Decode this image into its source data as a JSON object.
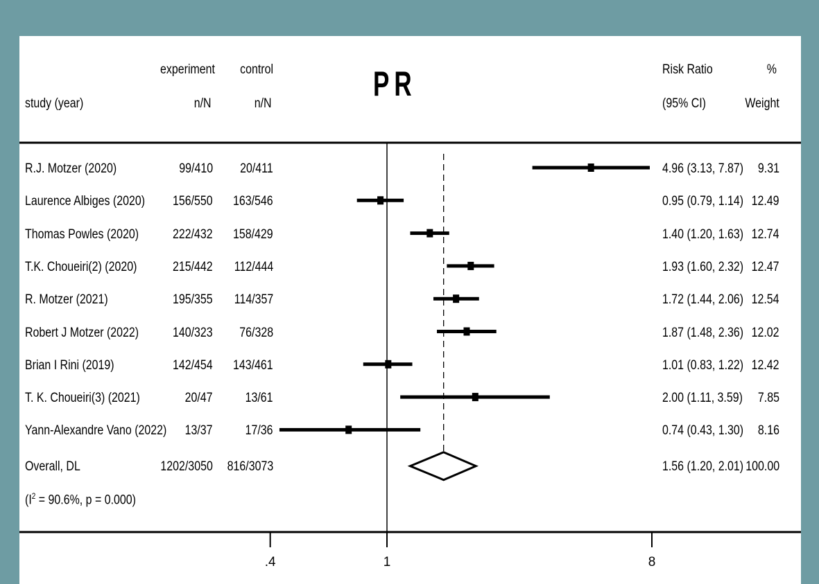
{
  "colors": {
    "background": "#6e9ca3",
    "panel": "#ffffff",
    "ink": "#000000"
  },
  "title": "PR",
  "headers": {
    "study_line2": "study (year)",
    "experiment_line1": "experiment",
    "experiment_line2": "n/N",
    "control_line1": "control",
    "control_line2": "n/N",
    "rr_line1": "Risk Ratio",
    "rr_line2": "(95% CI)",
    "weight_line1": "%",
    "weight_line2": "Weight"
  },
  "rows": [
    {
      "study": "R.J. Motzer   (2020)",
      "experiment": "99/410",
      "control": "20/411",
      "ci_text": "4.96 (3.13, 7.87)",
      "weight": "9.31"
    },
    {
      "study": "Laurence Albiges (2020)",
      "experiment": "156/550",
      "control": "163/546",
      "ci_text": "0.95 (0.79, 1.14)",
      "weight": "12.49"
    },
    {
      "study": "Thomas Powles   (2020)",
      "experiment": "222/432",
      "control": "158/429",
      "ci_text": "1.40 (1.20, 1.63)",
      "weight": "12.74"
    },
    {
      "study": "T.K. Choueiri(2) (2020)",
      "experiment": "215/442",
      "control": "112/444",
      "ci_text": "1.93 (1.60, 2.32)",
      "weight": "12.47"
    },
    {
      "study": "R. Motzer (2021)",
      "experiment": "195/355",
      "control": "114/357",
      "ci_text": "1.72 (1.44, 2.06)",
      "weight": "12.54"
    },
    {
      "study": "Robert J Motzer (2022)",
      "experiment": "140/323",
      "control": "76/328",
      "ci_text": "1.87 (1.48, 2.36)",
      "weight": "12.02"
    },
    {
      "study": "Brian I Rini (2019)",
      "experiment": "142/454",
      "control": "143/461",
      "ci_text": "1.01 (0.83, 1.22)",
      "weight": "12.42"
    },
    {
      "study": "T. K. Choueiri(3) (2021)",
      "experiment": "20/47",
      "control": "13/61",
      "ci_text": "2.00 (1.11, 3.59)",
      "weight": "7.85"
    },
    {
      "study": "Yann-Alexandre Vano (2022)",
      "experiment": "13/37",
      "control": "17/36",
      "ci_text": "0.74 (0.43, 1.30)",
      "weight": "8.16"
    }
  ],
  "overall": {
    "label": "Overall, DL",
    "experiment": "1202/3050",
    "control": "816/3073",
    "ci_text": "1.56 (1.20, 2.01)",
    "weight": "100.00",
    "het_prefix": "(I",
    "het_sup": "2",
    "het_rest": " = 90.6%, p = 0.000)"
  },
  "chart_data": {
    "type": "forest",
    "title": "PR",
    "measure": "Risk Ratio",
    "scale": "log",
    "xlim": [
      0.4,
      8
    ],
    "x_ticks": [
      ".4",
      "1",
      "8"
    ],
    "reference_line": 1,
    "pooled_line": 1.56,
    "studies": [
      {
        "name": "R.J. Motzer   (2020)",
        "rr": 4.96,
        "lo": 3.13,
        "hi": 7.87,
        "weight": 9.31
      },
      {
        "name": "Laurence Albiges (2020)",
        "rr": 0.95,
        "lo": 0.79,
        "hi": 1.14,
        "weight": 12.49
      },
      {
        "name": "Thomas Powles   (2020)",
        "rr": 1.4,
        "lo": 1.2,
        "hi": 1.63,
        "weight": 12.74
      },
      {
        "name": "T.K. Choueiri(2) (2020)",
        "rr": 1.93,
        "lo": 1.6,
        "hi": 2.32,
        "weight": 12.47
      },
      {
        "name": "R. Motzer (2021)",
        "rr": 1.72,
        "lo": 1.44,
        "hi": 2.06,
        "weight": 12.54
      },
      {
        "name": "Robert J Motzer (2022)",
        "rr": 1.87,
        "lo": 1.48,
        "hi": 2.36,
        "weight": 12.02
      },
      {
        "name": "Brian I Rini (2019)",
        "rr": 1.01,
        "lo": 0.83,
        "hi": 1.22,
        "weight": 12.42
      },
      {
        "name": "T. K. Choueiri(3) (2021)",
        "rr": 2.0,
        "lo": 1.11,
        "hi": 3.59,
        "weight": 7.85
      },
      {
        "name": "Yann-Alexandre Vano (2022)",
        "rr": 0.74,
        "lo": 0.43,
        "hi": 1.3,
        "weight": 8.16
      }
    ],
    "overall": {
      "name": "Overall, DL",
      "rr": 1.56,
      "lo": 1.2,
      "hi": 2.01,
      "weight": 100.0
    }
  }
}
